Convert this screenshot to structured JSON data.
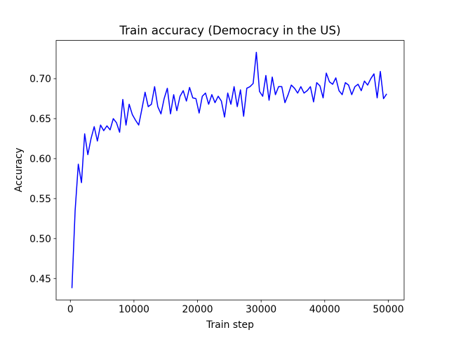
{
  "chart_data": {
    "type": "line",
    "title": "Train accuracy (Democracy in the US)",
    "x_label": "Train step",
    "y_label": "Accuracy",
    "color": "#0000ff",
    "x": [
      250,
      750,
      1250,
      1750,
      2250,
      2750,
      3250,
      3750,
      4250,
      4750,
      5250,
      5750,
      6250,
      6750,
      7250,
      7750,
      8250,
      8750,
      9250,
      9750,
      10250,
      10750,
      11250,
      11750,
      12250,
      12750,
      13250,
      13750,
      14250,
      14750,
      15250,
      15750,
      16250,
      16750,
      17250,
      17750,
      18250,
      18750,
      19250,
      19750,
      20250,
      20750,
      21250,
      21750,
      22250,
      22750,
      23250,
      23750,
      24250,
      24750,
      25250,
      25750,
      26250,
      26750,
      27250,
      27750,
      28250,
      28750,
      29250,
      29750,
      30250,
      30750,
      31250,
      31750,
      32250,
      32750,
      33250,
      33750,
      34250,
      34750,
      35250,
      35750,
      36250,
      36750,
      37250,
      37750,
      38250,
      38750,
      39250,
      39750,
      40250,
      40750,
      41250,
      41750,
      42250,
      42750,
      43250,
      43750,
      44250,
      44750,
      45250,
      45750,
      46250,
      46750,
      47250,
      47750,
      48250,
      48750,
      49250,
      49750
    ],
    "values": [
      0.438,
      0.535,
      0.593,
      0.57,
      0.631,
      0.605,
      0.625,
      0.64,
      0.622,
      0.642,
      0.635,
      0.641,
      0.636,
      0.65,
      0.645,
      0.633,
      0.674,
      0.642,
      0.668,
      0.655,
      0.648,
      0.642,
      0.662,
      0.683,
      0.665,
      0.668,
      0.69,
      0.665,
      0.656,
      0.675,
      0.688,
      0.656,
      0.68,
      0.66,
      0.678,
      0.685,
      0.672,
      0.689,
      0.676,
      0.675,
      0.657,
      0.678,
      0.682,
      0.668,
      0.68,
      0.67,
      0.678,
      0.672,
      0.652,
      0.682,
      0.668,
      0.69,
      0.665,
      0.686,
      0.653,
      0.688,
      0.69,
      0.694,
      0.733,
      0.684,
      0.678,
      0.704,
      0.673,
      0.702,
      0.68,
      0.69,
      0.69,
      0.67,
      0.68,
      0.692,
      0.688,
      0.682,
      0.69,
      0.682,
      0.685,
      0.69,
      0.671,
      0.695,
      0.691,
      0.676,
      0.707,
      0.696,
      0.693,
      0.701,
      0.685,
      0.68,
      0.695,
      0.692,
      0.68,
      0.69,
      0.693,
      0.685,
      0.697,
      0.692,
      0.7,
      0.706,
      0.676,
      0.709,
      0.675,
      0.681
    ],
    "xlim": [
      -2237.5,
      52487.5
    ],
    "ylim": [
      0.4233,
      0.7478
    ],
    "xticks": [
      0,
      10000,
      20000,
      30000,
      40000,
      50000
    ],
    "yticks": [
      0.45,
      {
        "value": 0.5,
        "label": "0.50"
      },
      0.55,
      {
        "value": 0.6,
        "label": "0.60"
      },
      0.65,
      {
        "value": 0.7,
        "label": "0.70"
      }
    ]
  }
}
